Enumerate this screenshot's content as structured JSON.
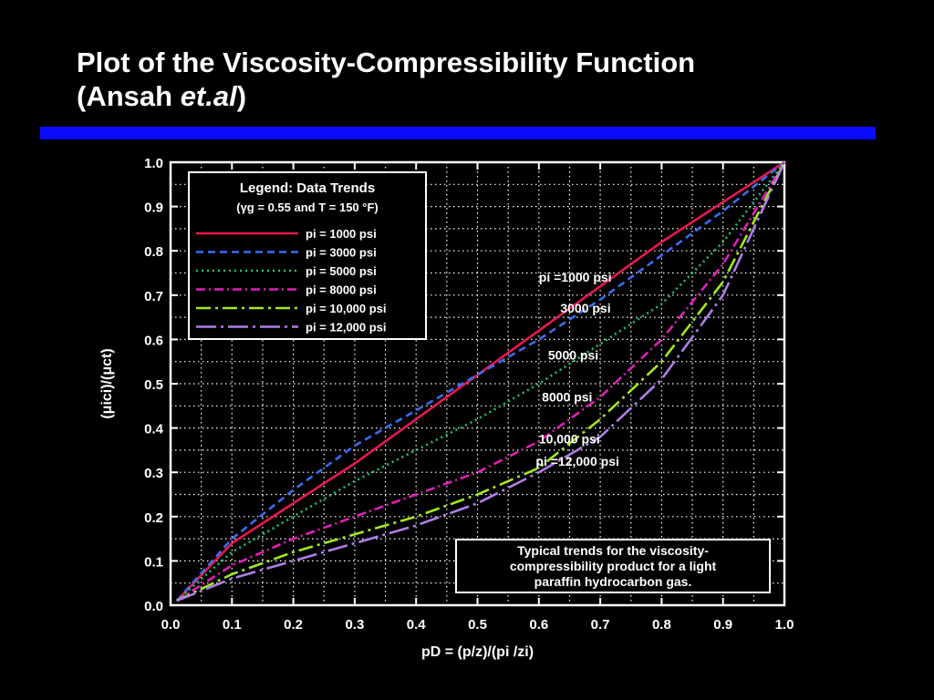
{
  "slide": {
    "title_line1": "Plot of the Viscosity-Compressibility Function",
    "title_line2_prefix": "(Ansah ",
    "title_line2_italic": "et.al",
    "title_line2_suffix": ")",
    "accent_color": "#0a0aff"
  },
  "chart_data": {
    "type": "line",
    "xlim": [
      0,
      1
    ],
    "ylim": [
      0,
      1
    ],
    "grid": true,
    "x_ticks": [
      "0.0",
      "0.1",
      "0.2",
      "0.3",
      "0.4",
      "0.5",
      "0.6",
      "0.7",
      "0.8",
      "0.9",
      "1.0"
    ],
    "y_ticks": [
      "0.0",
      "0.1",
      "0.2",
      "0.3",
      "0.4",
      "0.5",
      "0.6",
      "0.7",
      "0.8",
      "0.9",
      "1.0"
    ],
    "xlabel": "pD = (p/z)/(pi /zi)",
    "ylabel": "(μici)/(μct)",
    "legend_title": "Legend: Data Trends",
    "legend_subtitle": "(γg = 0.55 and T = 150 °F)",
    "legend_position": "top-left",
    "series": [
      {
        "name": "pi = 1000 psi",
        "color": "#e8184f",
        "dash": "",
        "x": [
          0.01,
          0.1,
          0.2,
          0.3,
          0.4,
          0.5,
          0.6,
          0.7,
          0.8,
          0.9,
          1.0
        ],
        "y": [
          0.01,
          0.14,
          0.23,
          0.32,
          0.42,
          0.52,
          0.62,
          0.72,
          0.82,
          0.91,
          1.0
        ]
      },
      {
        "name": "pi = 3000 psi",
        "color": "#3a6cf0",
        "dash": "8,5",
        "x": [
          0.01,
          0.1,
          0.2,
          0.3,
          0.4,
          0.5,
          0.6,
          0.7,
          0.8,
          0.9,
          1.0
        ],
        "y": [
          0.01,
          0.15,
          0.26,
          0.36,
          0.44,
          0.52,
          0.6,
          0.69,
          0.79,
          0.89,
          1.0
        ]
      },
      {
        "name": "pi = 5000 psi",
        "color": "#1ec468",
        "dash": "2,4",
        "x": [
          0.01,
          0.1,
          0.2,
          0.3,
          0.4,
          0.5,
          0.6,
          0.7,
          0.8,
          0.9,
          1.0
        ],
        "y": [
          0.01,
          0.12,
          0.2,
          0.28,
          0.35,
          0.42,
          0.5,
          0.59,
          0.68,
          0.82,
          1.0
        ]
      },
      {
        "name": "pi = 8000 psi",
        "color": "#e020b8",
        "dash": "10,4,2,4",
        "x": [
          0.01,
          0.1,
          0.2,
          0.3,
          0.4,
          0.5,
          0.6,
          0.7,
          0.8,
          0.9,
          1.0
        ],
        "y": [
          0.01,
          0.09,
          0.15,
          0.2,
          0.25,
          0.3,
          0.37,
          0.47,
          0.6,
          0.77,
          1.0
        ]
      },
      {
        "name": "pi = 10,000 psi",
        "color": "#a4e81e",
        "dash": "16,5,3,5",
        "x": [
          0.01,
          0.1,
          0.2,
          0.3,
          0.4,
          0.5,
          0.6,
          0.7,
          0.8,
          0.9,
          1.0
        ],
        "y": [
          0.01,
          0.07,
          0.12,
          0.16,
          0.2,
          0.25,
          0.31,
          0.42,
          0.55,
          0.73,
          1.0
        ]
      },
      {
        "name": "pi = 12,000 psi",
        "color": "#b07ee8",
        "dash": "22,5,3,5",
        "x": [
          0.01,
          0.1,
          0.2,
          0.3,
          0.4,
          0.5,
          0.6,
          0.7,
          0.8,
          0.9,
          1.0
        ],
        "y": [
          0.01,
          0.06,
          0.1,
          0.14,
          0.18,
          0.23,
          0.3,
          0.38,
          0.51,
          0.7,
          1.0
        ]
      }
    ],
    "annotations": [
      {
        "text": "pi =1000 psi",
        "x": 0.6,
        "y": 0.73
      },
      {
        "text": "3000 psi",
        "x": 0.635,
        "y": 0.66
      },
      {
        "text": "5000 psi",
        "x": 0.615,
        "y": 0.555
      },
      {
        "text": "8000 psi",
        "x": 0.605,
        "y": 0.46
      },
      {
        "text": "10,000 psi",
        "x": 0.6,
        "y": 0.365
      },
      {
        "text": "pi =12,000 psi",
        "x": 0.595,
        "y": 0.315
      }
    ],
    "note_box": {
      "lines": [
        "Typical trends for the viscosity-",
        "compressibility product for a light",
        "paraffin hydrocarbon gas."
      ]
    }
  }
}
